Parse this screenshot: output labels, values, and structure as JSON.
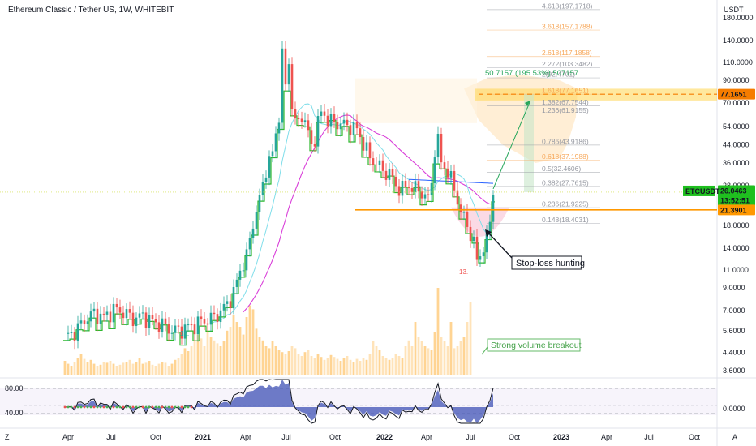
{
  "header": {
    "title": "Ethereum Classic / Tether US, 1W, WHITEBIT",
    "unit": "USDT"
  },
  "chart_data": {
    "type": "candlestick",
    "symbol": "ETCUSDT",
    "scale": "log",
    "grid": false,
    "yticks": [
      3.6,
      4.4,
      5.6,
      7.0,
      9.0,
      11.0,
      14.0,
      18.0,
      22.0,
      28.0,
      36.0,
      44.0,
      54.0,
      70.0,
      90.0,
      110.0,
      140.0,
      180.0
    ],
    "ytick_labels": [
      "3.6000",
      "4.4000",
      "5.6000",
      "7.0000",
      "9.0000",
      "11.0000",
      "14.0000",
      "18.0000",
      "22.0000",
      "28.0000",
      "36.0000",
      "44.0000",
      "54.0000",
      "70.0000",
      "90.0000",
      "110.0000",
      "140.0000",
      "180.0000"
    ],
    "xticks": [
      {
        "label": "Apr",
        "bold": false
      },
      {
        "label": "Jul",
        "bold": false
      },
      {
        "label": "Oct",
        "bold": false
      },
      {
        "label": "2021",
        "bold": true
      },
      {
        "label": "Apr",
        "bold": false
      },
      {
        "label": "Jul",
        "bold": false
      },
      {
        "label": "Oct",
        "bold": false
      },
      {
        "label": "2022",
        "bold": true
      },
      {
        "label": "Apr",
        "bold": false
      },
      {
        "label": "Jul",
        "bold": false
      },
      {
        "label": "Oct",
        "bold": false
      },
      {
        "label": "2023",
        "bold": true
      },
      {
        "label": "Apr",
        "bold": false
      },
      {
        "label": "Jul",
        "bold": false
      },
      {
        "label": "Oct",
        "bold": false
      }
    ],
    "fib_levels": [
      {
        "label": "4.618(197.1718)",
        "value": 197.1718,
        "color": "#9598a1"
      },
      {
        "label": "3.618(157.1788)",
        "value": 157.1788,
        "color": "#f7a85b"
      },
      {
        "label": "2.618(117.1858)",
        "value": 117.1858,
        "color": "#f7a85b"
      },
      {
        "label": "2.272(103.3482)",
        "value": 103.3482,
        "color": "#9598a1"
      },
      {
        "label": "2(92.4701)",
        "value": 92.4701,
        "color": "#9598a1"
      },
      {
        "label": "1.618(77.1651)",
        "value": 77.1651,
        "color": "#f7a85b"
      },
      {
        "label": "1.382(67.7544)",
        "value": 67.7544,
        "color": "#9598a1"
      },
      {
        "label": "1.236(61.9155)",
        "value": 61.9155,
        "color": "#9598a1"
      },
      {
        "label": "0.786(43.9186)",
        "value": 43.9186,
        "color": "#9598a1"
      },
      {
        "label": "0.618(37.1988)",
        "value": 37.1988,
        "color": "#f7a85b"
      },
      {
        "label": "0.5(32.4606)",
        "value": 32.4606,
        "color": "#9598a1"
      },
      {
        "label": "0.382(27.7615)",
        "value": 27.7615,
        "color": "#9598a1"
      },
      {
        "label": "0.236(21.9225)",
        "value": 21.9225,
        "color": "#9598a1"
      },
      {
        "label": "0.148(18.4031)",
        "value": 18.4031,
        "color": "#9598a1"
      }
    ],
    "target_label": "50.7157 (195.53%) 507157",
    "price_labels": {
      "target": "77.1651",
      "symbol": "ETCUSDT",
      "last": "26.0463",
      "countdown": "13:52:51",
      "support": "21.3901"
    },
    "levels": {
      "target": 77.1651,
      "last": 26.0463,
      "support": 21.3901
    },
    "annotations": {
      "stoploss": "Stop-loss hunting",
      "volume": "Strong volume breakout"
    },
    "seq_markers": [
      "13.",
      "13."
    ],
    "rsi": {
      "yticks": [
        80.0,
        40.0
      ],
      "ytick_labels": [
        "80.00",
        "40.00"
      ],
      "right_label": "0.0000"
    },
    "colors": {
      "up": "#26a69a",
      "down": "#ef5350",
      "accent": "#f57c00",
      "step": "#2eb82e",
      "ma_magenta": "#d93fd9",
      "ma_blue": "#2962ff",
      "price_green": "#1fbf1f"
    },
    "price_path": [
      [
        0,
        5.2
      ],
      [
        3,
        5.5
      ],
      [
        6,
        6.3
      ],
      [
        9,
        6.8
      ],
      [
        12,
        6.5
      ],
      [
        15,
        7.1
      ],
      [
        18,
        6.9
      ],
      [
        21,
        6.4
      ],
      [
        24,
        6.6
      ],
      [
        27,
        6.2
      ],
      [
        30,
        6.0
      ],
      [
        33,
        5.6
      ],
      [
        36,
        5.7
      ],
      [
        39,
        5.9
      ],
      [
        42,
        6.2
      ],
      [
        45,
        6.4
      ],
      [
        48,
        6.9
      ],
      [
        50,
        7.6
      ],
      [
        52,
        8.5
      ],
      [
        54,
        11.0
      ],
      [
        56,
        12.8
      ],
      [
        58,
        18.5
      ],
      [
        60,
        24.0
      ],
      [
        62,
        34.0
      ],
      [
        64,
        40.0
      ],
      [
        66,
        62.0
      ],
      [
        67,
        118.0
      ],
      [
        68,
        85.0
      ],
      [
        69,
        112.0
      ],
      [
        70,
        68.0
      ],
      [
        71,
        55.0
      ],
      [
        72,
        58.0
      ],
      [
        73,
        62.0
      ],
      [
        74,
        56.0
      ],
      [
        75,
        50.0
      ],
      [
        76,
        44.0
      ],
      [
        77,
        48.0
      ],
      [
        78,
        56.0
      ],
      [
        79,
        63.0
      ],
      [
        80,
        62.0
      ],
      [
        81,
        58.0
      ],
      [
        82,
        57.0
      ],
      [
        84,
        56.0
      ],
      [
        86,
        55.0
      ],
      [
        88,
        54.0
      ],
      [
        90,
        52.0
      ],
      [
        92,
        45.0
      ],
      [
        94,
        38.0
      ],
      [
        96,
        36.0
      ],
      [
        98,
        33.0
      ],
      [
        100,
        32.0
      ],
      [
        102,
        28.0
      ],
      [
        104,
        27.0
      ],
      [
        106,
        28.0
      ],
      [
        108,
        27.0
      ],
      [
        110,
        26.0
      ],
      [
        112,
        24.0
      ],
      [
        113,
        29.0
      ],
      [
        114,
        42.0
      ],
      [
        115,
        46.0
      ],
      [
        116,
        36.0
      ],
      [
        118,
        33.0
      ],
      [
        120,
        27.0
      ],
      [
        122,
        21.0
      ],
      [
        124,
        18.0
      ],
      [
        126,
        15.0
      ],
      [
        127,
        12.0
      ],
      [
        128,
        13.0
      ],
      [
        129,
        14.5
      ],
      [
        130,
        15.0
      ],
      [
        131,
        19.0
      ],
      [
        132,
        26.0
      ]
    ],
    "volume": [
      0.15,
      0.12,
      0.1,
      0.14,
      0.18,
      0.22,
      0.17,
      0.14,
      0.16,
      0.12,
      0.1,
      0.11,
      0.14,
      0.13,
      0.15,
      0.12,
      0.1,
      0.11,
      0.13,
      0.14,
      0.16,
      0.12,
      0.14,
      0.18,
      0.12,
      0.13,
      0.15,
      0.11,
      0.1,
      0.12,
      0.14,
      0.13,
      0.1,
      0.12,
      0.16,
      0.18,
      0.22,
      0.28,
      0.25,
      0.3,
      0.35,
      0.42,
      0.38,
      0.3,
      0.45,
      0.4,
      0.36,
      0.33,
      0.3,
      0.35,
      0.46,
      0.5,
      0.62,
      0.55,
      0.5,
      0.42,
      0.6,
      0.72,
      0.68,
      0.48,
      0.4,
      0.36,
      0.3,
      0.28,
      0.35,
      0.3,
      0.26,
      0.24,
      0.22,
      0.25,
      0.3,
      0.28,
      0.22,
      0.2,
      0.24,
      0.26,
      0.2,
      0.18,
      0.22,
      0.19,
      0.16,
      0.18,
      0.21,
      0.19,
      0.17,
      0.15,
      0.18,
      0.2,
      0.16,
      0.14,
      0.17,
      0.15,
      0.18,
      0.16,
      0.22,
      0.35,
      0.3,
      0.26,
      0.2,
      0.18,
      0.16,
      0.18,
      0.22,
      0.2,
      0.18,
      0.3,
      0.36,
      0.3,
      0.55,
      0.4,
      0.35,
      0.3,
      0.28,
      0.26,
      0.45,
      0.9,
      0.4,
      0.35,
      0.3,
      0.55,
      0.28,
      0.3,
      0.35,
      0.4,
      0.55,
      0.75
    ]
  }
}
